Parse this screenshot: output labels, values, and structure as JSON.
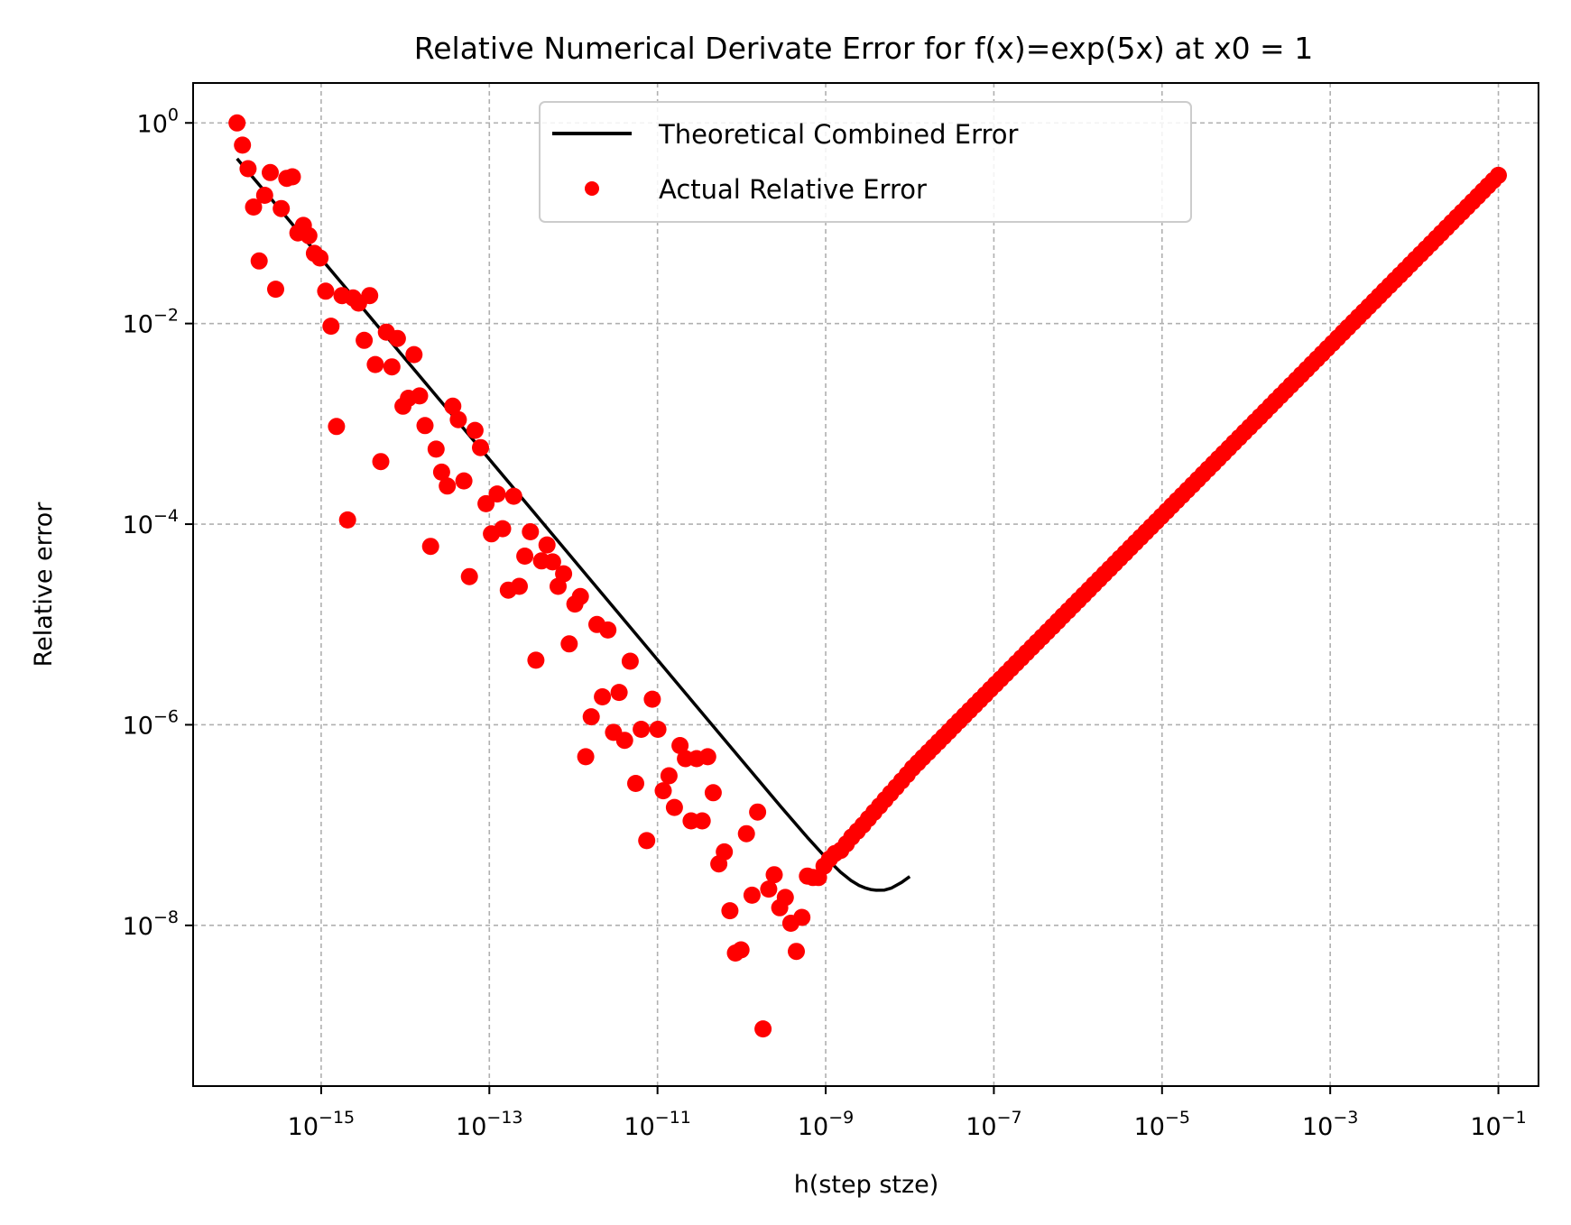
{
  "chart_data": {
    "type": "scatter",
    "title": "Relative Numerical Derivate Error for f(x)=exp(5x) at x0 = 1",
    "xlabel": "h(step stze)",
    "ylabel": "Relative error",
    "xscale": "log",
    "yscale": "log",
    "xlim": [
      3e-17,
      0.3
    ],
    "ylim": [
      2.5e-10,
      2.5
    ],
    "grid": true,
    "grid_style": "dashed",
    "x_ticks": [
      {
        "value": 1e-15,
        "base": "10",
        "exp": "−15"
      },
      {
        "value": 1e-13,
        "base": "10",
        "exp": "−13"
      },
      {
        "value": 1e-11,
        "base": "10",
        "exp": "−11"
      },
      {
        "value": 1e-09,
        "base": "10",
        "exp": "−9"
      },
      {
        "value": 1e-07,
        "base": "10",
        "exp": "−7"
      },
      {
        "value": 1e-05,
        "base": "10",
        "exp": "−5"
      },
      {
        "value": 0.001,
        "base": "10",
        "exp": "−3"
      },
      {
        "value": 0.1,
        "base": "10",
        "exp": "−1"
      }
    ],
    "y_ticks": [
      {
        "value": 1,
        "base": "10",
        "exp": "0"
      },
      {
        "value": 0.01,
        "base": "10",
        "exp": "−2"
      },
      {
        "value": 0.0001,
        "base": "10",
        "exp": "−4"
      },
      {
        "value": 1e-06,
        "base": "10",
        "exp": "−6"
      },
      {
        "value": 1e-08,
        "base": "10",
        "exp": "−8"
      }
    ],
    "legend": {
      "position": "upper-center",
      "entries": [
        "Theoretical Combined Error",
        "Actual Relative Error"
      ]
    },
    "series": [
      {
        "name": "Theoretical Combined Error",
        "type": "line",
        "color": "#000000",
        "points": [
          [
            1e-16,
            0.44
          ],
          [
            3e-16,
            0.148
          ],
          [
            1e-15,
            0.0444
          ],
          [
            3e-15,
            0.0148
          ],
          [
            1e-14,
            0.00444
          ],
          [
            3e-14,
            0.00148
          ],
          [
            1e-13,
            0.000444
          ],
          [
            3e-13,
            0.000148
          ],
          [
            1e-12,
            4.44e-05
          ],
          [
            3e-12,
            1.48e-05
          ],
          [
            1e-11,
            4.44e-06
          ],
          [
            3e-11,
            1.48e-06
          ],
          [
            1e-10,
            4.45e-07
          ],
          [
            3e-10,
            1.49e-07
          ],
          [
            6e-10,
            7.6e-08
          ],
          [
            1e-09,
            4.75e-08
          ],
          [
            1.5e-09,
            3.4e-08
          ],
          [
            2e-09,
            2.8e-08
          ],
          [
            2.5e-09,
            2.5e-08
          ],
          [
            3e-09,
            2.35e-08
          ],
          [
            3.5e-09,
            2.27e-08
          ],
          [
            4e-09,
            2.24e-08
          ],
          [
            5e-09,
            2.25e-08
          ],
          [
            6e-09,
            2.35e-08
          ],
          [
            8e-09,
            2.68e-08
          ],
          [
            1e-08,
            3.07e-08
          ]
        ]
      },
      {
        "name": "Actual Relative Error",
        "type": "scatter",
        "color": "#ff0000",
        "points": [
          [
            1e-16,
            1.0
          ],
          [
            1.16e-16,
            0.6
          ],
          [
            1.35e-16,
            0.35
          ],
          [
            1.57e-16,
            0.145
          ],
          [
            1.83e-16,
            0.042
          ],
          [
            2.13e-16,
            0.19
          ],
          [
            2.48e-16,
            0.32
          ],
          [
            2.88e-16,
            0.022
          ],
          [
            3.35e-16,
            0.14
          ],
          [
            3.9e-16,
            0.28
          ],
          [
            4.54e-16,
            0.29
          ],
          [
            5.28e-16,
            0.08
          ],
          [
            6.14e-16,
            0.095
          ],
          [
            7.15e-16,
            0.075
          ],
          [
            8.31e-16,
            0.05
          ],
          [
            9.67e-16,
            0.045
          ],
          [
            1.13e-15,
            0.021
          ],
          [
            1.31e-15,
            0.0094
          ],
          [
            1.52e-15,
            0.00094
          ],
          [
            1.77e-15,
            0.019
          ],
          [
            2.06e-15,
            0.00011
          ],
          [
            2.4e-15,
            0.018
          ],
          [
            2.79e-15,
            0.016
          ],
          [
            3.25e-15,
            0.0068
          ],
          [
            3.78e-15,
            0.019
          ],
          [
            4.4e-15,
            0.0039
          ],
          [
            5.12e-15,
            0.00042
          ],
          [
            5.96e-15,
            0.0082
          ],
          [
            6.93e-15,
            0.0037
          ],
          [
            8.07e-15,
            0.0071
          ],
          [
            9.39e-15,
            0.0015
          ],
          [
            1.09e-14,
            0.0018
          ],
          [
            1.27e-14,
            0.0049
          ],
          [
            1.48e-14,
            0.0019
          ],
          [
            1.72e-14,
            0.00096
          ],
          [
            2e-14,
            6e-05
          ],
          [
            2.33e-14,
            0.00056
          ],
          [
            2.71e-14,
            0.00033
          ],
          [
            3.16e-14,
            0.00024
          ],
          [
            3.68e-14,
            0.0015
          ],
          [
            4.28e-14,
            0.0011
          ],
          [
            4.98e-14,
            0.00027
          ],
          [
            5.8e-14,
            3e-05
          ],
          [
            6.75e-14,
            0.00086
          ],
          [
            7.85e-14,
            0.00058
          ],
          [
            9.14e-14,
            0.00016
          ],
          [
            1.06e-13,
            8e-05
          ],
          [
            1.24e-13,
            0.0002
          ],
          [
            1.44e-13,
            9e-05
          ],
          [
            1.68e-13,
            2.2e-05
          ],
          [
            1.95e-13,
            0.00019
          ],
          [
            2.27e-13,
            2.4e-05
          ],
          [
            2.64e-13,
            4.8e-05
          ],
          [
            3.08e-13,
            8.4e-05
          ],
          [
            3.58e-13,
            4.4e-06
          ],
          [
            4.17e-13,
            4.3e-05
          ],
          [
            4.85e-13,
            6.2e-05
          ],
          [
            5.65e-13,
            4.2e-05
          ],
          [
            6.57e-13,
            2.4e-05
          ],
          [
            7.65e-13,
            3.2e-05
          ],
          [
            8.9e-13,
            6.4e-06
          ],
          [
            1.04e-12,
            1.6e-05
          ],
          [
            1.21e-12,
            1.9e-05
          ],
          [
            1.4e-12,
            4.8e-07
          ],
          [
            1.63e-12,
            1.2e-06
          ],
          [
            1.9e-12,
            1e-05
          ],
          [
            2.21e-12,
            1.9e-06
          ],
          [
            2.57e-12,
            8.8e-06
          ],
          [
            3e-12,
            8.4e-07
          ],
          [
            3.49e-12,
            2.1e-06
          ],
          [
            4.06e-12,
            7e-07
          ],
          [
            4.73e-12,
            4.3e-06
          ],
          [
            5.5e-12,
            2.6e-07
          ],
          [
            6.4e-12,
            9e-07
          ],
          [
            7.45e-12,
            7e-08
          ],
          [
            8.67e-12,
            1.8e-06
          ],
          [
            1.01e-11,
            9e-07
          ],
          [
            1.17e-11,
            2.2e-07
          ],
          [
            1.37e-11,
            3.1e-07
          ],
          [
            1.59e-11,
            1.5e-07
          ],
          [
            1.85e-11,
            6.2e-07
          ],
          [
            2.15e-11,
            4.6e-07
          ],
          [
            2.51e-11,
            1.1e-07
          ],
          [
            2.92e-11,
            4.6e-07
          ],
          [
            3.4e-11,
            1.1e-07
          ],
          [
            3.95e-11,
            4.8e-07
          ],
          [
            4.6e-11,
            2.1e-07
          ],
          [
            5.36e-11,
            4.1e-08
          ],
          [
            6.23e-11,
            5.4e-08
          ],
          [
            7.26e-11,
            1.4e-08
          ],
          [
            8.45e-11,
            5.3e-09
          ],
          [
            9.83e-11,
            5.7e-09
          ],
          [
            1.14e-10,
            8.2e-08
          ],
          [
            1.33e-10,
            2e-08
          ],
          [
            1.55e-10,
            1.35e-07
          ],
          [
            1.8e-10,
            9.3e-10
          ],
          [
            2.1e-10,
            2.3e-08
          ],
          [
            2.44e-10,
            3.2e-08
          ],
          [
            2.84e-10,
            1.5e-08
          ],
          [
            3.31e-10,
            1.9e-08
          ],
          [
            3.85e-10,
            1.05e-08
          ],
          [
            4.48e-10,
            5.5e-09
          ],
          [
            5.21e-10,
            1.2e-08
          ],
          [
            6.07e-10,
            3.1e-08
          ],
          [
            7.06e-10,
            3e-08
          ],
          [
            8.22e-10,
            3e-08
          ],
          [
            9.56e-10,
            3.9e-08
          ],
          [
            1.11e-09,
            4.6e-08
          ],
          [
            1.29e-09,
            5.2e-08
          ],
          [
            1.51e-09,
            5.6e-08
          ],
          [
            1.76e-09,
            6.5e-08
          ],
          [
            2.04e-09,
            7.6e-08
          ],
          [
            2.38e-09,
            8.7e-08
          ],
          [
            2.77e-09,
            1e-07
          ],
          [
            3.22e-09,
            1.16e-07
          ],
          [
            3.75e-09,
            1.34e-07
          ],
          [
            4.37e-09,
            1.55e-07
          ],
          [
            5.08e-09,
            1.79e-07
          ],
          [
            5.91e-09,
            2.07e-07
          ],
          [
            6.88e-09,
            2.39e-07
          ],
          [
            8.01e-09,
            2.76e-07
          ],
          [
            9.32e-09,
            3.19e-07
          ]
        ],
        "generated_segment": {
          "description": "dense straight-line run on log-log axes",
          "x_start": 1.08e-08,
          "x_end": 0.1,
          "count": 114,
          "y_start": 3.7e-07,
          "y_end": 0.3
        }
      }
    ]
  }
}
